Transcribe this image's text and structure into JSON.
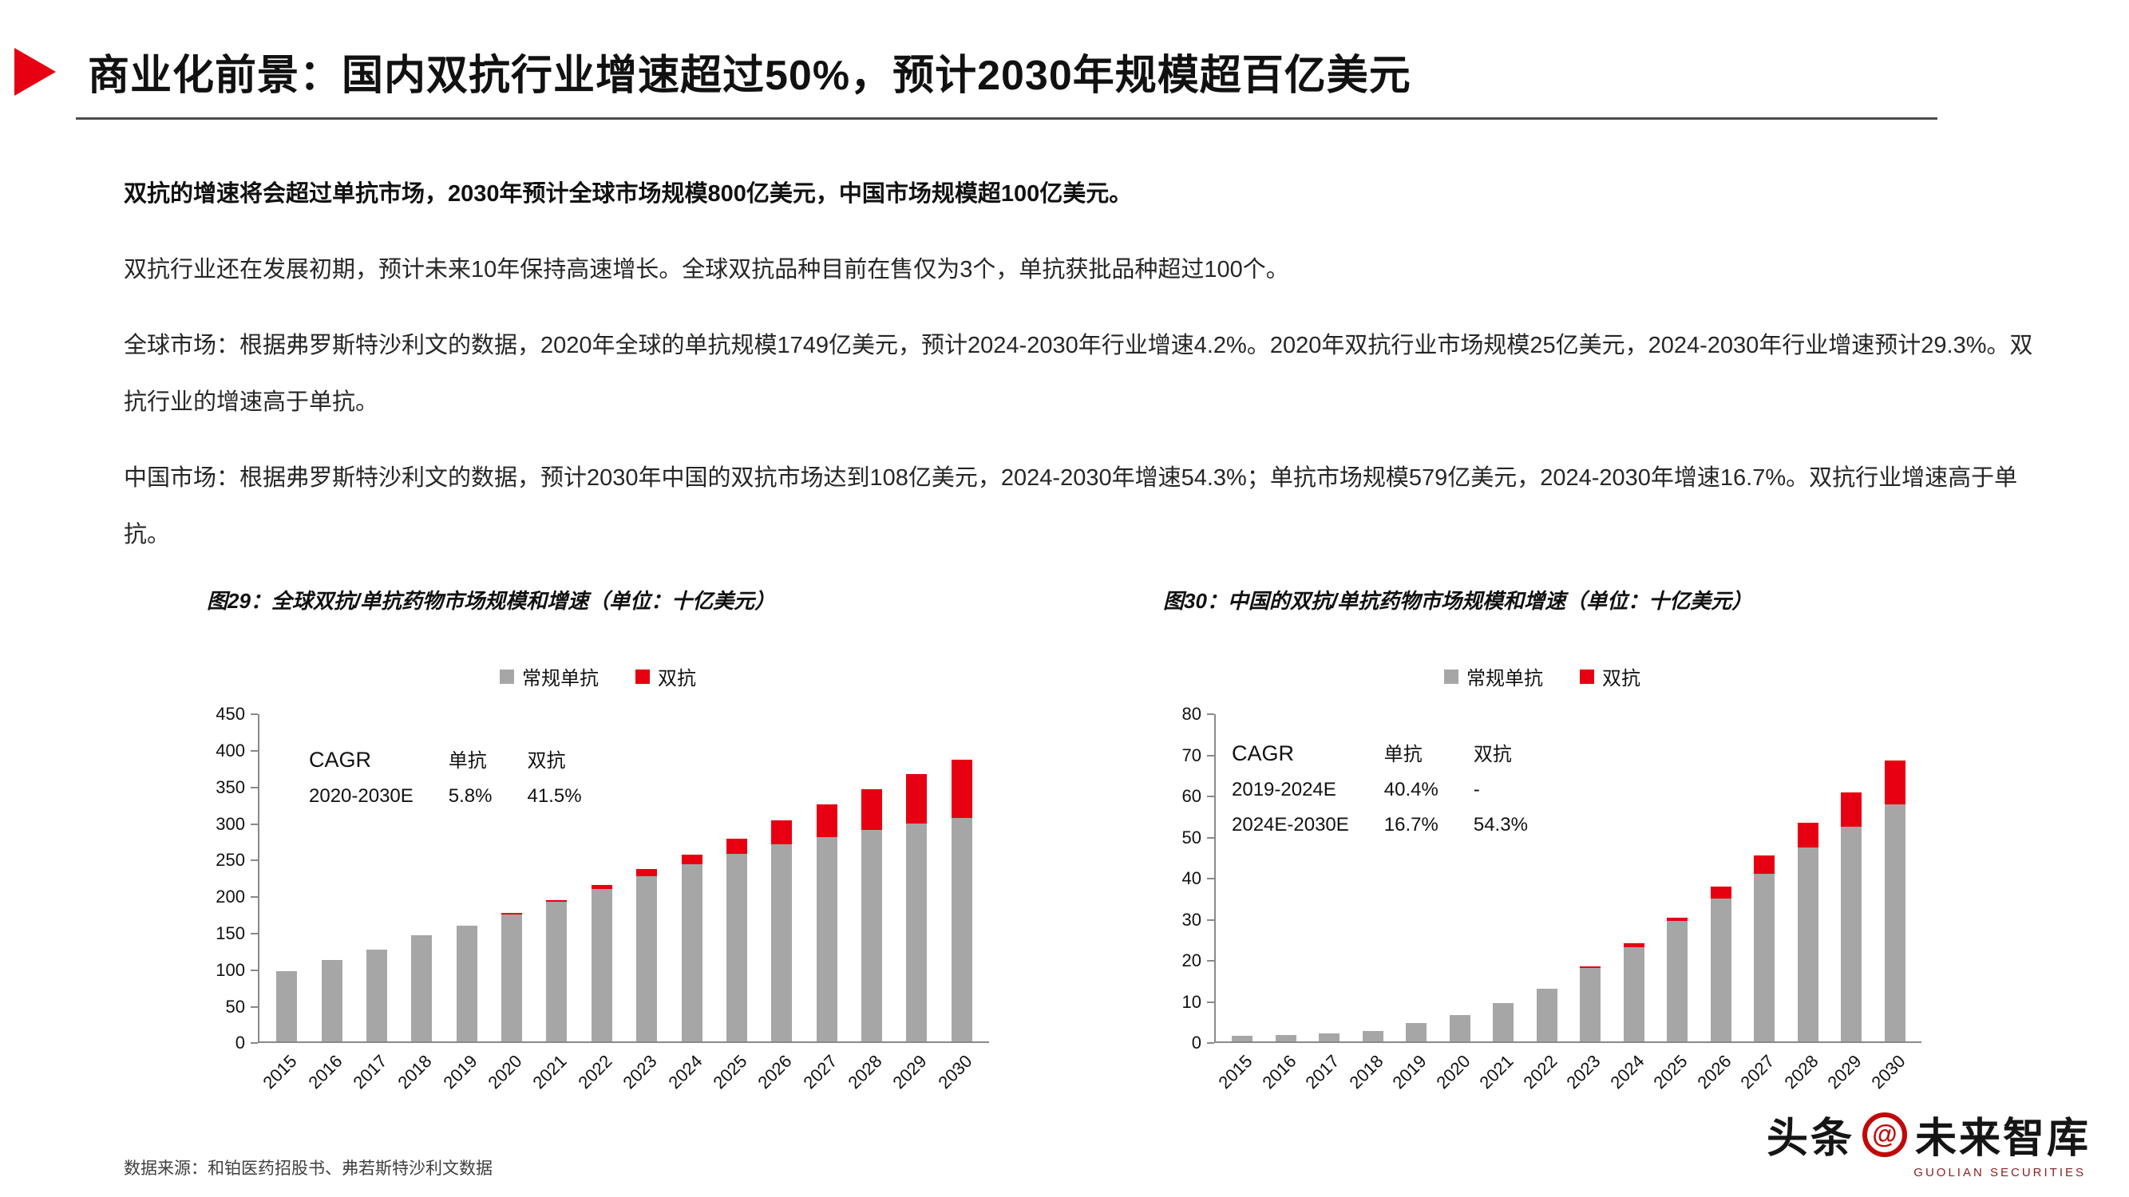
{
  "header": {
    "title": "商业化前景：国内双抗行业增速超过50%，预计2030年规模超百亿美元"
  },
  "body": {
    "lead": "双抗的增速将会超过单抗市场，2030年预计全球市场规模800亿美元，中国市场规模超100亿美元。",
    "p_industry": "双抗行业还在发展初期，预计未来10年保持高速增长。全球双抗品种目前在售仅为3个，单抗获批品种超过100个。",
    "p_global": "全球市场：根据弗罗斯特沙利文的数据，2020年全球的单抗规模1749亿美元，预计2024-2030年行业增速4.2%。2020年双抗行业市场规模25亿美元，2024-2030年行业增速预计29.3%。双抗行业的增速高于单抗。",
    "p_china": "中国市场：根据弗罗斯特沙利文的数据，预计2030年中国的双抗市场达到108亿美元，2024-2030年增速54.3%；单抗市场规模579亿美元，2024-2030年增速16.7%。双抗行业增速高于单抗。"
  },
  "colors": {
    "accent_red": "#e60012",
    "bar_gray": "#a6a6a6",
    "bar_red": "#e60012"
  },
  "chart_data": [
    {
      "type": "bar",
      "stacked": true,
      "caption": "图29：全球双抗/单抗药物市场规模和增速（单位：十亿美元）",
      "unit": "十亿美元",
      "legend": [
        "常规单抗",
        "双抗"
      ],
      "categories": [
        "2015",
        "2016",
        "2017",
        "2018",
        "2019",
        "2020",
        "2021",
        "2022",
        "2023",
        "2024",
        "2025",
        "2026",
        "2027",
        "2028",
        "2029",
        "2030"
      ],
      "series": [
        {
          "name": "常规单抗",
          "color": "#a6a6a6",
          "values": [
            97,
            112,
            127,
            146,
            160,
            175,
            192,
            210,
            228,
            244,
            258,
            271,
            281,
            291,
            300,
            308
          ]
        },
        {
          "name": "双抗",
          "color": "#e60012",
          "values": [
            0,
            0,
            0,
            0,
            0,
            2.5,
            3,
            6,
            9,
            13,
            21,
            33,
            45,
            56,
            68,
            80
          ]
        }
      ],
      "ylim": [
        0,
        450
      ],
      "ytick_step": 50,
      "grid": "off",
      "legend_position": "top",
      "cagr": {
        "header": [
          "CAGR",
          "单抗",
          "双抗"
        ],
        "rows": [
          [
            "2020-2030E",
            "5.8%",
            "41.5%"
          ]
        ]
      }
    },
    {
      "type": "bar",
      "stacked": true,
      "caption": "图30：中国的双抗/单抗药物市场规模和增速（单位：十亿美元）",
      "unit": "十亿美元",
      "legend": [
        "常规单抗",
        "双抗"
      ],
      "categories": [
        "2015",
        "2016",
        "2017",
        "2018",
        "2019",
        "2020",
        "2021",
        "2022",
        "2023",
        "2024",
        "2025",
        "2026",
        "2027",
        "2028",
        "2029",
        "2030"
      ],
      "series": [
        {
          "name": "常规单抗",
          "color": "#a6a6a6",
          "values": [
            1.5,
            1.7,
            2.0,
            2.5,
            4.5,
            6.5,
            9.5,
            13,
            18,
            23,
            29.5,
            35,
            41,
            47.5,
            52.5,
            58
          ]
        },
        {
          "name": "双抗",
          "color": "#e60012",
          "values": [
            0,
            0,
            0,
            0,
            0,
            0,
            0,
            0,
            0.4,
            1,
            0.8,
            3,
            4.5,
            6,
            8.5,
            10.8
          ]
        }
      ],
      "ylim": [
        0,
        80
      ],
      "ytick_step": 10,
      "grid": "off",
      "legend_position": "top",
      "cagr": {
        "header": [
          "CAGR",
          "单抗",
          "双抗"
        ],
        "rows": [
          [
            "2019-2024E",
            "40.4%",
            "-"
          ],
          [
            "2024E-2030E",
            "16.7%",
            "54.3%"
          ]
        ]
      }
    }
  ],
  "footer": {
    "source": "数据来源：和铂医药招股书、弗若斯特沙利文数据"
  },
  "watermark": {
    "toutiao": "头条",
    "brand": "未来智库",
    "subbrand": "GUOLIAN SECURITIES"
  }
}
